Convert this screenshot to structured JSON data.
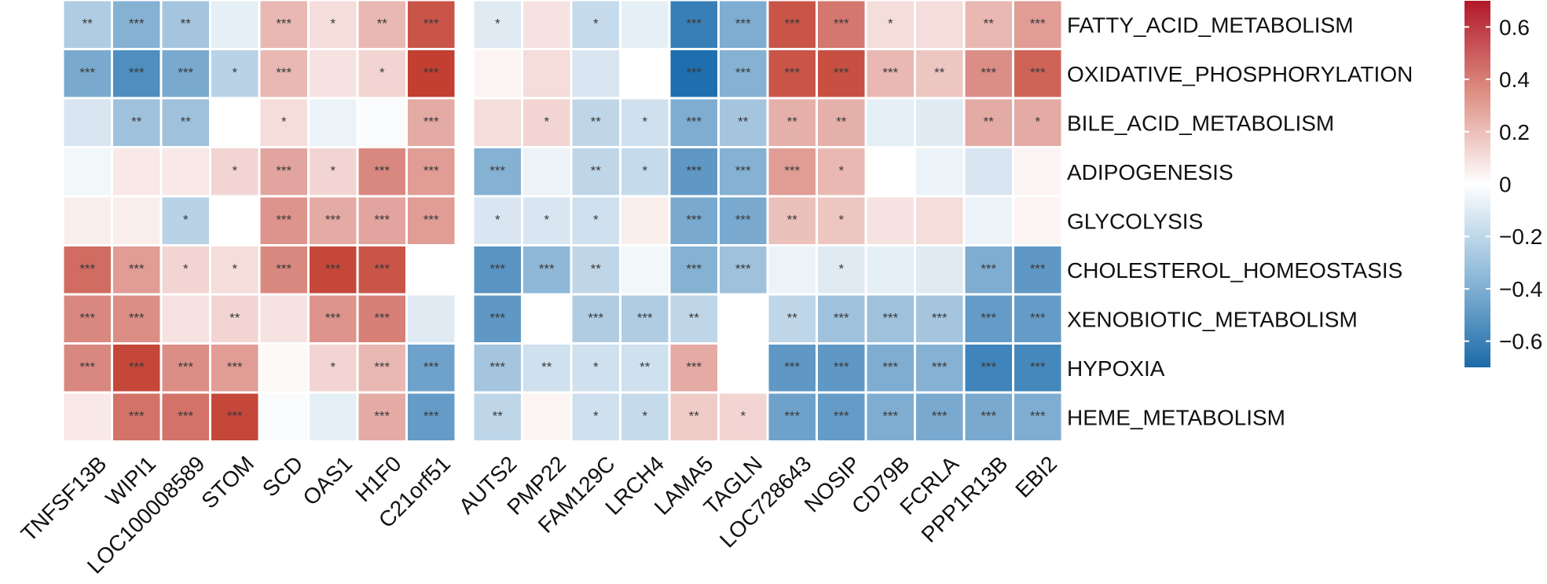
{
  "chart_data": {
    "type": "heatmap",
    "title": "",
    "rows": [
      "FATTY_ACID_METABOLISM",
      "OXIDATIVE_PHOSPHORYLATION",
      "BILE_ACID_METABOLISM",
      "ADIPOGENESIS",
      "GLYCOLYSIS",
      "CHOLESTEROL_HOMEOSTASIS",
      "XENOBIOTIC_METABOLISM",
      "HYPOXIA",
      "HEME_METABOLISM"
    ],
    "column_groups": [
      [
        "TNFSF13B",
        "WIPI1",
        "LOC100008589",
        "STOM",
        "SCD",
        "OAS1",
        "H1F0",
        "C21orf51"
      ],
      [
        "AUTS2",
        "PMP22",
        "FAM129C",
        "LRCH4",
        "LAMA5",
        "TAGLN",
        "LOC728643",
        "NOSIP",
        "CD79B",
        "FCRLA",
        "PPP1R13B",
        "EBI2"
      ]
    ],
    "values": [
      [
        -0.25,
        -0.38,
        -0.28,
        -0.08,
        0.25,
        0.12,
        0.25,
        0.6,
        -0.1,
        0.1,
        -0.18,
        -0.08,
        -0.62,
        -0.4,
        0.6,
        0.48,
        0.12,
        0.12,
        0.25,
        0.35
      ],
      [
        -0.42,
        -0.55,
        -0.42,
        -0.22,
        0.25,
        0.1,
        0.15,
        0.68,
        0.04,
        0.12,
        -0.12,
        0.0,
        -0.7,
        -0.38,
        0.6,
        0.62,
        0.25,
        0.2,
        0.4,
        0.55
      ],
      [
        -0.12,
        -0.3,
        -0.3,
        0.0,
        0.12,
        -0.06,
        -0.02,
        0.3,
        0.12,
        0.15,
        -0.2,
        -0.15,
        -0.4,
        -0.28,
        0.28,
        0.28,
        -0.08,
        -0.1,
        0.3,
        0.3
      ],
      [
        -0.04,
        0.08,
        0.08,
        0.15,
        0.32,
        0.15,
        0.42,
        0.35,
        -0.38,
        -0.06,
        -0.2,
        -0.18,
        -0.5,
        -0.38,
        0.35,
        0.25,
        0.0,
        -0.06,
        -0.12,
        0.04
      ],
      [
        0.06,
        0.06,
        -0.22,
        0.0,
        0.38,
        0.3,
        0.32,
        0.35,
        -0.12,
        -0.12,
        -0.15,
        0.06,
        -0.42,
        -0.42,
        0.22,
        0.2,
        0.1,
        0.12,
        -0.06,
        0.04
      ],
      [
        0.52,
        0.35,
        0.15,
        0.12,
        0.42,
        0.65,
        0.6,
        0.0,
        -0.52,
        -0.35,
        -0.2,
        -0.04,
        -0.38,
        -0.3,
        -0.06,
        -0.1,
        -0.08,
        -0.1,
        -0.4,
        -0.5
      ],
      [
        0.42,
        0.4,
        0.1,
        0.15,
        0.1,
        0.38,
        0.45,
        -0.1,
        -0.5,
        0.0,
        -0.25,
        -0.25,
        -0.2,
        0.0,
        -0.2,
        -0.3,
        -0.3,
        -0.28,
        -0.48,
        -0.48
      ],
      [
        0.42,
        0.65,
        0.4,
        0.35,
        0.02,
        0.15,
        0.25,
        -0.45,
        -0.28,
        -0.15,
        -0.15,
        -0.15,
        0.3,
        0.0,
        -0.5,
        -0.5,
        -0.4,
        -0.38,
        -0.6,
        -0.58
      ],
      [
        0.08,
        0.5,
        0.5,
        0.65,
        -0.02,
        -0.08,
        0.3,
        -0.48,
        -0.2,
        0.04,
        -0.15,
        -0.18,
        0.18,
        0.15,
        -0.45,
        -0.48,
        -0.4,
        -0.42,
        -0.42,
        -0.4
      ]
    ],
    "significance": [
      [
        "**",
        "***",
        "**",
        "",
        "***",
        "*",
        "**",
        "***",
        "*",
        "",
        "*",
        "",
        "***",
        "***",
        "***",
        "***",
        "*",
        "",
        "**",
        "***"
      ],
      [
        "***",
        "***",
        "***",
        "*",
        "***",
        "",
        "*",
        "***",
        "",
        "",
        "",
        "",
        "***",
        "***",
        "***",
        "***",
        "***",
        "**",
        "***",
        "***"
      ],
      [
        "",
        "**",
        "**",
        "",
        "*",
        "",
        "",
        "***",
        "",
        "*",
        "**",
        "*",
        "***",
        "**",
        "**",
        "**",
        "",
        "",
        "**",
        "*"
      ],
      [
        "",
        "",
        "",
        "*",
        "***",
        "*",
        "***",
        "***",
        "***",
        "",
        "**",
        "*",
        "***",
        "***",
        "***",
        "*",
        "",
        "",
        "",
        ""
      ],
      [
        "",
        "",
        "*",
        "",
        "***",
        "***",
        "***",
        "***",
        "*",
        "*",
        "*",
        "",
        "***",
        "***",
        "**",
        "*",
        "",
        "",
        "",
        ""
      ],
      [
        "***",
        "***",
        "*",
        "*",
        "***",
        "***",
        "***",
        "",
        "***",
        "***",
        "**",
        "",
        "***",
        "***",
        "",
        "*",
        "",
        "",
        "***",
        "***"
      ],
      [
        "***",
        "***",
        "",
        "**",
        "",
        "***",
        "***",
        "",
        "***",
        "",
        "***",
        "***",
        "**",
        "",
        "**",
        "***",
        "***",
        "***",
        "***",
        "***"
      ],
      [
        "***",
        "***",
        "***",
        "***",
        "",
        "*",
        "***",
        "***",
        "***",
        "**",
        "*",
        "**",
        "***",
        "",
        "***",
        "***",
        "***",
        "***",
        "***",
        "***"
      ],
      [
        "",
        "***",
        "***",
        "***",
        "",
        "",
        "***",
        "***",
        "**",
        "",
        "*",
        "*",
        "**",
        "*",
        "***",
        "***",
        "***",
        "***",
        "***",
        "***"
      ]
    ],
    "color_scale": {
      "low": "#1f6fae",
      "mid": "#ffffff",
      "high": "#c0392b",
      "range": [
        -0.7,
        0.7
      ]
    },
    "colorbar_ticks": [
      "0.6",
      "0.4",
      "0.2",
      "0",
      "−0.2",
      "−0.4",
      "−0.6"
    ],
    "colorbar_tick_values": [
      0.6,
      0.4,
      0.2,
      0,
      -0.2,
      -0.4,
      -0.6
    ]
  }
}
